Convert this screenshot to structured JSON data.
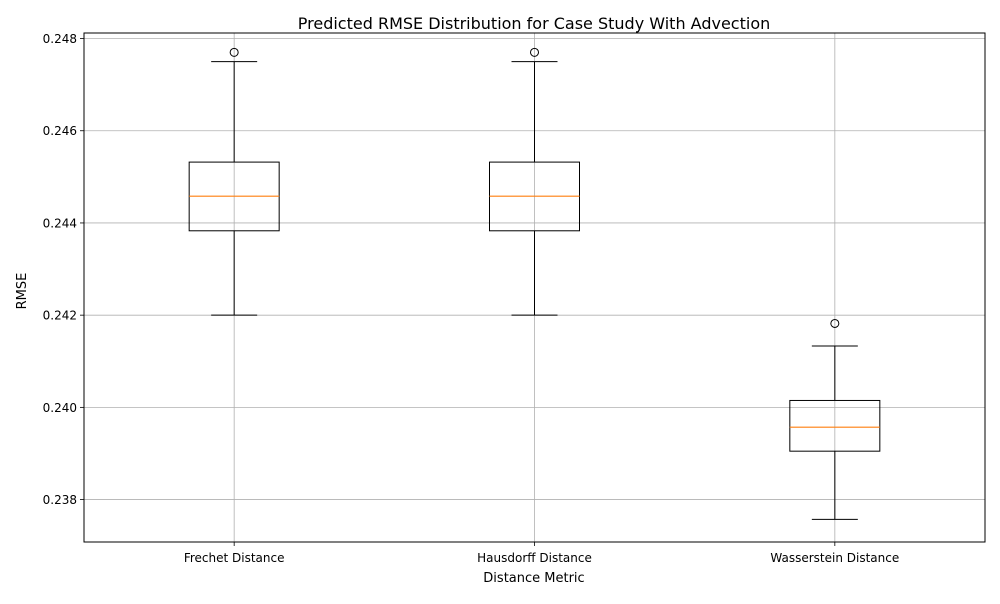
{
  "chart_data": {
    "type": "boxplot",
    "title": "Predicted RMSE Distribution for Case Study With Advection",
    "xlabel": "Distance Metric",
    "ylabel": "RMSE",
    "categories": [
      "Frechet Distance",
      "Hausdorff Distance",
      "Wasserstein Distance"
    ],
    "boxes": [
      {
        "name": "Frechet Distance",
        "whisker_low": 0.242,
        "q1": 0.24383,
        "median": 0.24458,
        "q3": 0.24532,
        "whisker_high": 0.2475,
        "outliers": [
          0.2477
        ]
      },
      {
        "name": "Hausdorff Distance",
        "whisker_low": 0.242,
        "q1": 0.24383,
        "median": 0.24458,
        "q3": 0.24532,
        "whisker_high": 0.2475,
        "outliers": [
          0.2477
        ]
      },
      {
        "name": "Wasserstein Distance",
        "whisker_low": 0.23757,
        "q1": 0.23905,
        "median": 0.23957,
        "q3": 0.24015,
        "whisker_high": 0.24133,
        "outliers": [
          0.24182
        ]
      }
    ],
    "yticks": [
      "0.238",
      "0.240",
      "0.242",
      "0.244",
      "0.246",
      "0.248"
    ],
    "ylim": [
      0.23708,
      0.24812
    ],
    "grid": true,
    "colors": {
      "box": "#000000",
      "median": "#ff7f0e",
      "grid": "#b0b0b0"
    }
  }
}
